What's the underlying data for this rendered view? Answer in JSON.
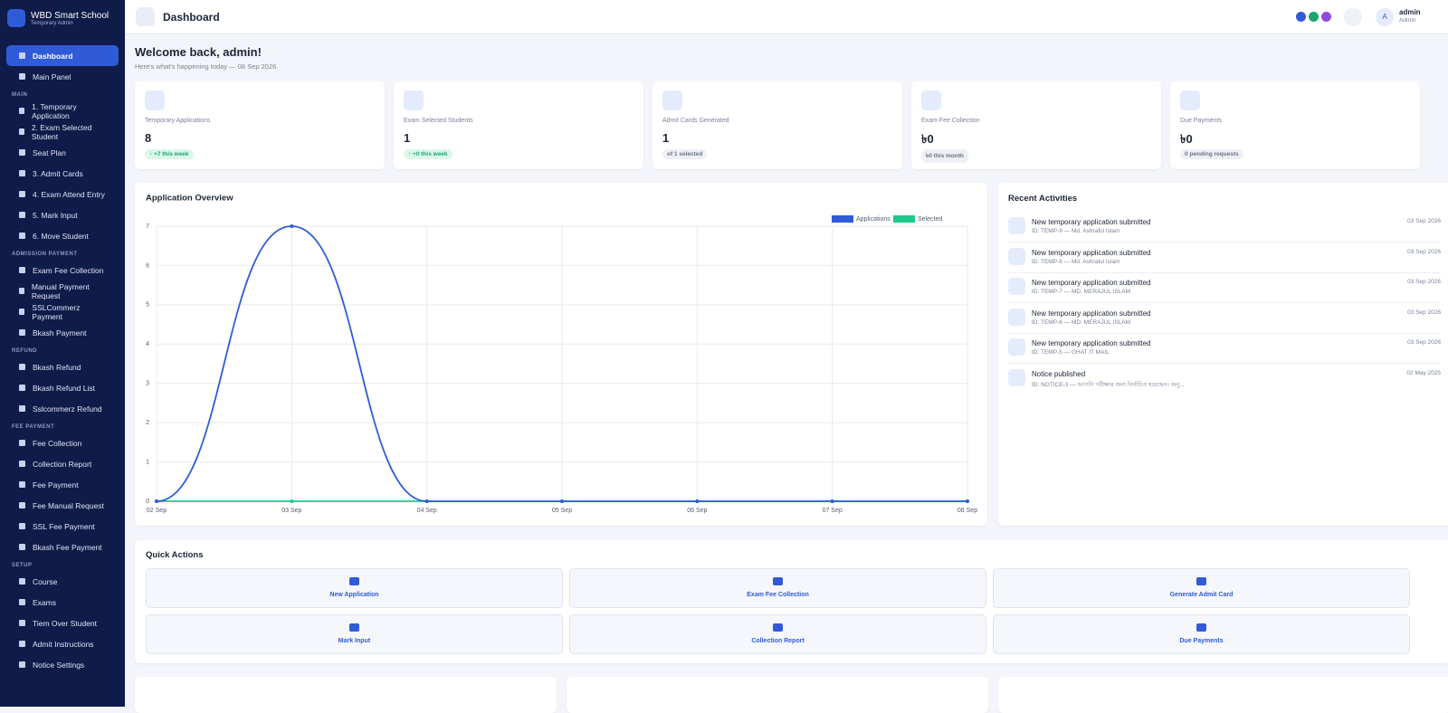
{
  "sidebar": {
    "brand": "WBD Smart School",
    "brand_sub": "Temporary Admin",
    "top": [
      "Dashboard",
      "Main Panel"
    ],
    "sections": [
      {
        "title": "MAIN",
        "items": [
          "1. Temporary Application",
          "2. Exam Selected Student",
          "Seat Plan",
          "3. Admit Cards",
          "4. Exam Attend Entry",
          "5. Mark Input",
          "6. Move Student"
        ]
      },
      {
        "title": "ADMISSION PAYMENT",
        "items": [
          "Exam Fee Collection",
          "Manual Payment Request",
          "SSLCommerz Payment",
          "Bkash Payment"
        ]
      },
      {
        "title": "REFUND",
        "items": [
          "Bkash Refund",
          "Bkash Refund List",
          "Sslcommerz Refund"
        ]
      },
      {
        "title": "FEE PAYMENT",
        "items": [
          "Fee Collection",
          "Collection Report",
          "Fee Payment",
          "Fee Manual Request",
          "SSL Fee Payment",
          "Bkash Fee Payment"
        ]
      },
      {
        "title": "SETUP",
        "items": [
          "Course",
          "Exams",
          "Tiem Over Student",
          "Admit Instructions",
          "Notice Settings"
        ]
      }
    ]
  },
  "topbar": {
    "title": "Dashboard",
    "avatar": "A",
    "user": "admin",
    "role": "Admin"
  },
  "welcome": {
    "title": "Welcome back, admin!",
    "subtitle": "Here's what's happening today — 08 Sep 2026"
  },
  "stats": [
    {
      "label": "Temporary Applications",
      "value": "8",
      "badge": "↑ +7 this week"
    },
    {
      "label": "Exam Selected Students",
      "value": "1",
      "badge": "↑ +0 this week"
    },
    {
      "label": "Admit Cards Generated",
      "value": "1",
      "badge": "of 1 selected"
    },
    {
      "label": "Exam Fee Collection",
      "value": "৳0",
      "badge": "৳0 this month"
    },
    {
      "label": "Due Payments",
      "value": "৳0",
      "badge": "0 pending requests"
    }
  ],
  "chart_data": {
    "type": "line",
    "title": "Application Overview",
    "categories": [
      "02 Sep",
      "03 Sep",
      "04 Sep",
      "05 Sep",
      "06 Sep",
      "07 Sep",
      "08 Sep"
    ],
    "series": [
      {
        "name": "Applications",
        "color": "#2f5bd8",
        "values": [
          0,
          7,
          0,
          0,
          0,
          0,
          0
        ]
      },
      {
        "name": "Selected",
        "color": "#1ec98b",
        "values": [
          0,
          0,
          0,
          0,
          0,
          0,
          0
        ]
      }
    ],
    "ylim": [
      0,
      7
    ],
    "yticks": [
      0,
      1,
      2,
      3,
      4,
      5,
      6,
      7
    ],
    "grid": true,
    "legend": "top-right"
  },
  "activities": {
    "title": "Recent Activities",
    "items": [
      {
        "title": "New temporary application submitted",
        "sub": "ID: TEMP-9 — Md. Ashraful Islam",
        "date": "03 Sep 2026"
      },
      {
        "title": "New temporary application submitted",
        "sub": "ID: TEMP-8 — Md. Ashraful Islam",
        "date": "03 Sep 2026"
      },
      {
        "title": "New temporary application submitted",
        "sub": "ID: TEMP-7 — MD. MERAJUL ISLAM",
        "date": "03 Sep 2026"
      },
      {
        "title": "New temporary application submitted",
        "sub": "ID: TEMP-6 — MD. MERAJUL ISLAM",
        "date": "03 Sep 2026"
      },
      {
        "title": "New temporary application submitted",
        "sub": "ID: TEMP-5 — GHAT IT MAIL",
        "date": "03 Sep 2026"
      },
      {
        "title": "Notice published",
        "sub": "ID: NOTICE-3 — আপনি পরীক্ষার জন্য নির্বাচিত হয়েছেন। অনু...",
        "date": "02 May 2025"
      }
    ]
  },
  "quick_actions": {
    "title": "Quick Actions",
    "items": [
      "New Application",
      "Exam Fee Collection",
      "Generate Admit Card",
      "Mark Input",
      "Collection Report",
      "Due Payments"
    ]
  }
}
